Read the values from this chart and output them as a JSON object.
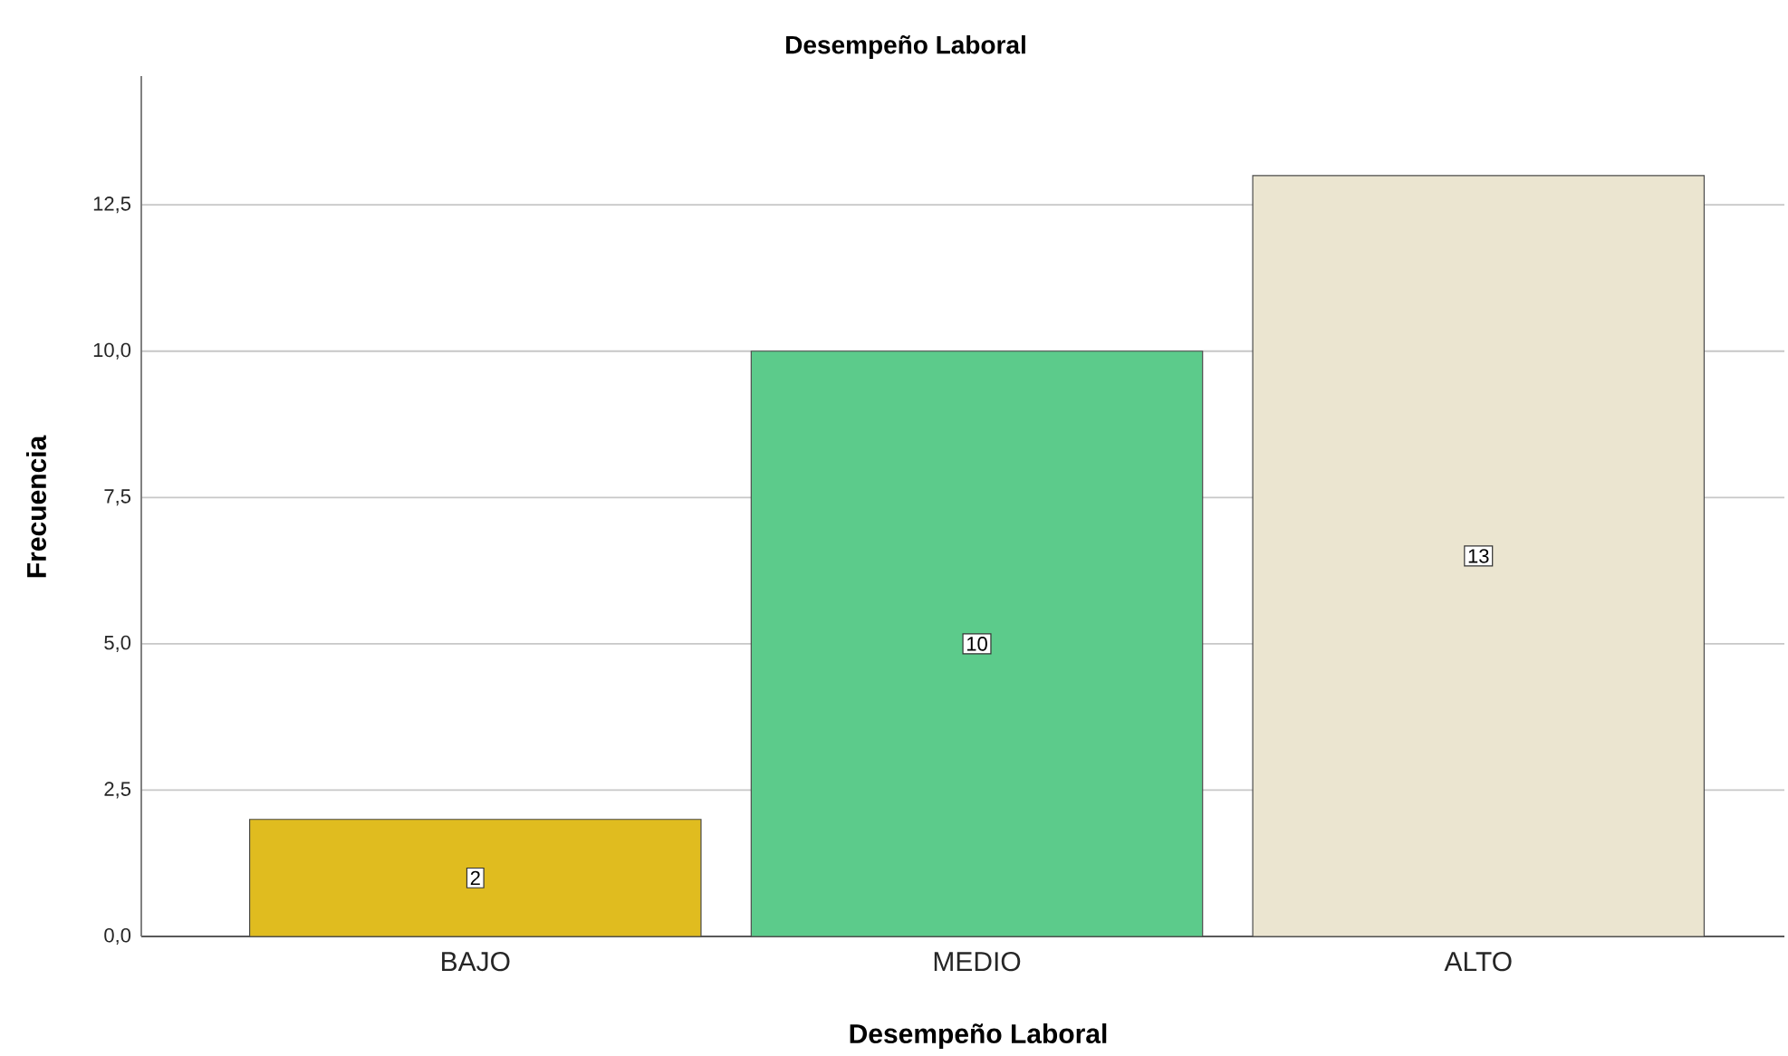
{
  "chart_data": {
    "type": "bar",
    "title": "Desempeño Laboral",
    "xlabel": "Desempeño Laboral",
    "ylabel": "Frecuencia",
    "categories": [
      "BAJO",
      "MEDIO",
      "ALTO"
    ],
    "values": [
      2,
      10,
      13
    ],
    "colors": [
      "#e0bc1f",
      "#5ccb8b",
      "#ebe5d0"
    ],
    "ylim": [
      0,
      14.7
    ],
    "yticks": [
      {
        "value": 0,
        "label": "0,0"
      },
      {
        "value": 2.5,
        "label": "2,5"
      },
      {
        "value": 5,
        "label": "5,0"
      },
      {
        "value": 7.5,
        "label": "7,5"
      },
      {
        "value": 10,
        "label": "10,0"
      },
      {
        "value": 12.5,
        "label": "12,5"
      }
    ],
    "grid": "y",
    "data_labels": true
  }
}
